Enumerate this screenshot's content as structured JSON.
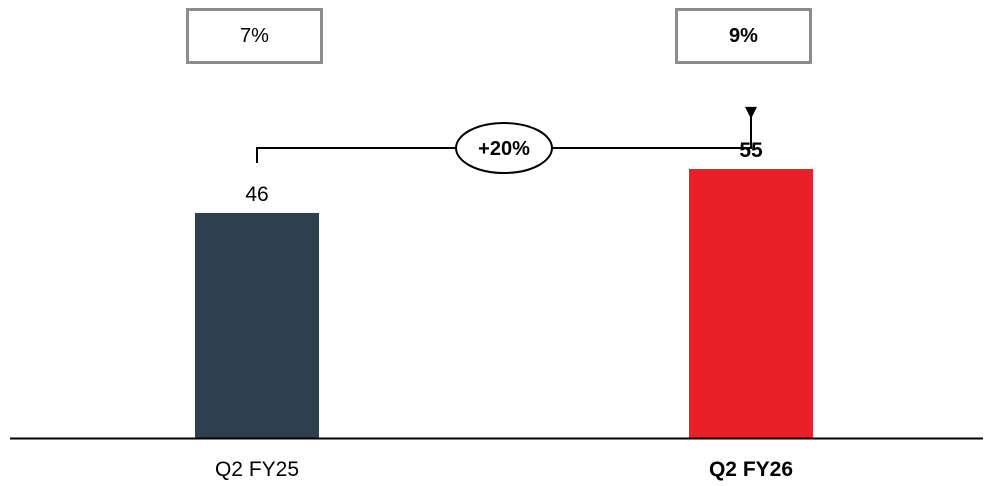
{
  "chart_data": {
    "type": "bar",
    "categories": [
      "Q2 FY25",
      "Q2 FY26"
    ],
    "values": [
      46,
      55
    ],
    "data_labels": [
      "46",
      "55"
    ],
    "margin_boxes": [
      "7%",
      "9%"
    ],
    "growth_label": "+20%",
    "ylim": [
      0,
      65
    ],
    "highlight_index": 1,
    "colors": [
      "#2e3f4e",
      "#e8202a"
    ],
    "xlabel": "",
    "ylabel": ""
  }
}
